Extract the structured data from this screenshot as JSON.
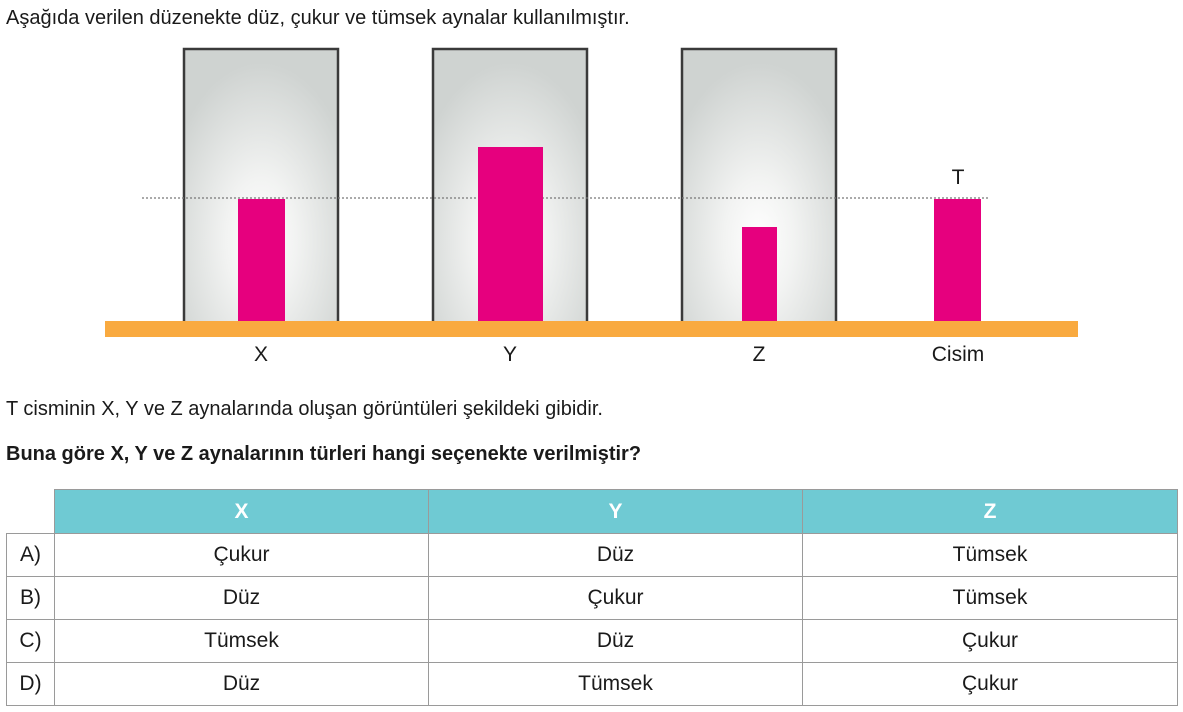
{
  "question": {
    "intro": "Aşağıda verilen düzenekte düz, çukur ve tümsek aynalar kullanılmıştır.",
    "statement": "T cisminin X, Y ve Z aynalarında oluşan görüntüleri şekildeki gibidir.",
    "prompt": "Buna göre X, Y ve Z aynalarının türleri hangi seçenekte verilmiştir?"
  },
  "figure": {
    "object_letter": "T",
    "mirror_labels": [
      "X",
      "Y",
      "Z"
    ],
    "object_label": "Cisim",
    "colors": {
      "image": "#e6007e",
      "ground": "#f9aa40",
      "mirror_edge": "#3a3a3a",
      "mirror_face": "#cfd3d1"
    }
  },
  "table": {
    "headers": [
      "X",
      "Y",
      "Z"
    ],
    "rows": [
      {
        "option": "A)",
        "cells": [
          "Çukur",
          "Düz",
          "Tümsek"
        ]
      },
      {
        "option": "B)",
        "cells": [
          "Düz",
          "Çukur",
          "Tümsek"
        ]
      },
      {
        "option": "C)",
        "cells": [
          "Tümsek",
          "Düz",
          "Çukur"
        ]
      },
      {
        "option": "D)",
        "cells": [
          "Düz",
          "Tümsek",
          "Çukur"
        ]
      }
    ]
  }
}
